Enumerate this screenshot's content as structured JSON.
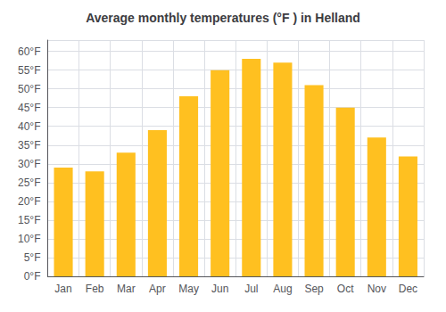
{
  "chart_data": {
    "type": "bar",
    "title": "Average monthly temperatures (°F ) in Helland",
    "categories": [
      "Jan",
      "Feb",
      "Mar",
      "Apr",
      "May",
      "Jun",
      "Jul",
      "Aug",
      "Sep",
      "Oct",
      "Nov",
      "Dec"
    ],
    "values": [
      29,
      28,
      33,
      39,
      48,
      55,
      58,
      57,
      51,
      45,
      37,
      32
    ],
    "color": "#FFC020",
    "ylim": [
      0,
      63
    ],
    "yticks": [
      {
        "value": 0,
        "label": "0°F"
      },
      {
        "value": 5,
        "label": "5°F"
      },
      {
        "value": 10,
        "label": "10°F"
      },
      {
        "value": 15,
        "label": "15°F"
      },
      {
        "value": 20,
        "label": "20°F"
      },
      {
        "value": 25,
        "label": "25°F"
      },
      {
        "value": 30,
        "label": "30°F"
      },
      {
        "value": 35,
        "label": "35°F"
      },
      {
        "value": 40,
        "label": "40°F"
      },
      {
        "value": 45,
        "label": "45°F"
      },
      {
        "value": 50,
        "label": "50°F"
      },
      {
        "value": 55,
        "label": "55°F"
      },
      {
        "value": 60,
        "label": "60°F"
      }
    ],
    "grid": true
  }
}
